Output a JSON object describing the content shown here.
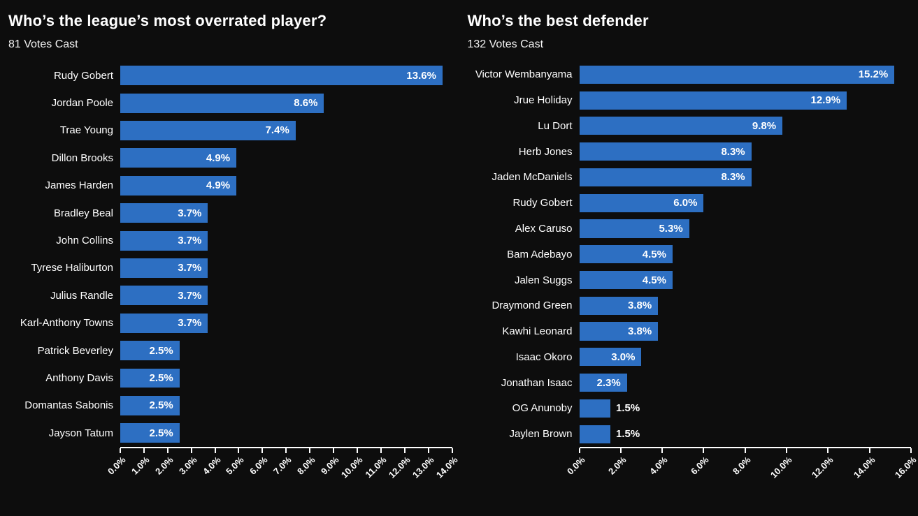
{
  "colors": {
    "background": "#0d0d0d",
    "bar": "#2d6fc2",
    "text": "#ffffff",
    "axis": "#ffffff"
  },
  "chart_data": [
    {
      "type": "bar",
      "orientation": "horizontal",
      "title": "Who’s the league’s most overrated player?",
      "subtitle": "81 Votes Cast",
      "categories": [
        "Rudy Gobert",
        "Jordan Poole",
        "Trae Young",
        "Dillon Brooks",
        "James Harden",
        "Bradley Beal",
        "John Collins",
        "Tyrese Haliburton",
        "Julius Randle",
        "Karl-Anthony Towns",
        "Patrick Beverley",
        "Anthony Davis",
        "Domantas Sabonis",
        "Jayson Tatum"
      ],
      "values": [
        13.6,
        8.6,
        7.4,
        4.9,
        4.9,
        3.7,
        3.7,
        3.7,
        3.7,
        3.7,
        2.5,
        2.5,
        2.5,
        2.5
      ],
      "value_labels": [
        "13.6%",
        "8.6%",
        "7.4%",
        "4.9%",
        "4.9%",
        "3.7%",
        "3.7%",
        "3.7%",
        "3.7%",
        "3.7%",
        "2.5%",
        "2.5%",
        "2.5%",
        "2.5%"
      ],
      "xlabel": "",
      "ylabel": "",
      "xlim": [
        0,
        14
      ],
      "x_tick_values": [
        0,
        1,
        2,
        3,
        4,
        5,
        6,
        7,
        8,
        9,
        10,
        11,
        12,
        13,
        14
      ],
      "x_ticks": [
        "0.0%",
        "1.0%",
        "2.0%",
        "3.0%",
        "4.0%",
        "5.0%",
        "6.0%",
        "7.0%",
        "8.0%",
        "9.0%",
        "10.0%",
        "11.0%",
        "12.0%",
        "13.0%",
        "14.0%"
      ],
      "grid": false,
      "legend": null
    },
    {
      "type": "bar",
      "orientation": "horizontal",
      "title": "Who’s the best defender",
      "subtitle": "132 Votes Cast",
      "categories": [
        "Victor Wembanyama",
        "Jrue Holiday",
        "Lu Dort",
        "Herb Jones",
        "Jaden McDaniels",
        "Rudy Gobert",
        "Alex Caruso",
        "Bam Adebayo",
        "Jalen Suggs",
        "Draymond Green",
        "Kawhi Leonard",
        "Isaac Okoro",
        "Jonathan Isaac",
        "OG Anunoby",
        "Jaylen Brown"
      ],
      "values": [
        15.2,
        12.9,
        9.8,
        8.3,
        8.3,
        6.0,
        5.3,
        4.5,
        4.5,
        3.8,
        3.8,
        3.0,
        2.3,
        1.5,
        1.5
      ],
      "value_labels": [
        "15.2%",
        "12.9%",
        "9.8%",
        "8.3%",
        "8.3%",
        "6.0%",
        "5.3%",
        "4.5%",
        "4.5%",
        "3.8%",
        "3.8%",
        "3.0%",
        "2.3%",
        "1.5%",
        "1.5%"
      ],
      "xlabel": "",
      "ylabel": "",
      "xlim": [
        0,
        16
      ],
      "x_tick_values": [
        0,
        2,
        4,
        6,
        8,
        10,
        12,
        14,
        16
      ],
      "x_ticks": [
        "0.0%",
        "2.0%",
        "4.0%",
        "6.0%",
        "8.0%",
        "10.0%",
        "12.0%",
        "14.0%",
        "16.0%"
      ],
      "grid": false,
      "legend": null
    }
  ]
}
